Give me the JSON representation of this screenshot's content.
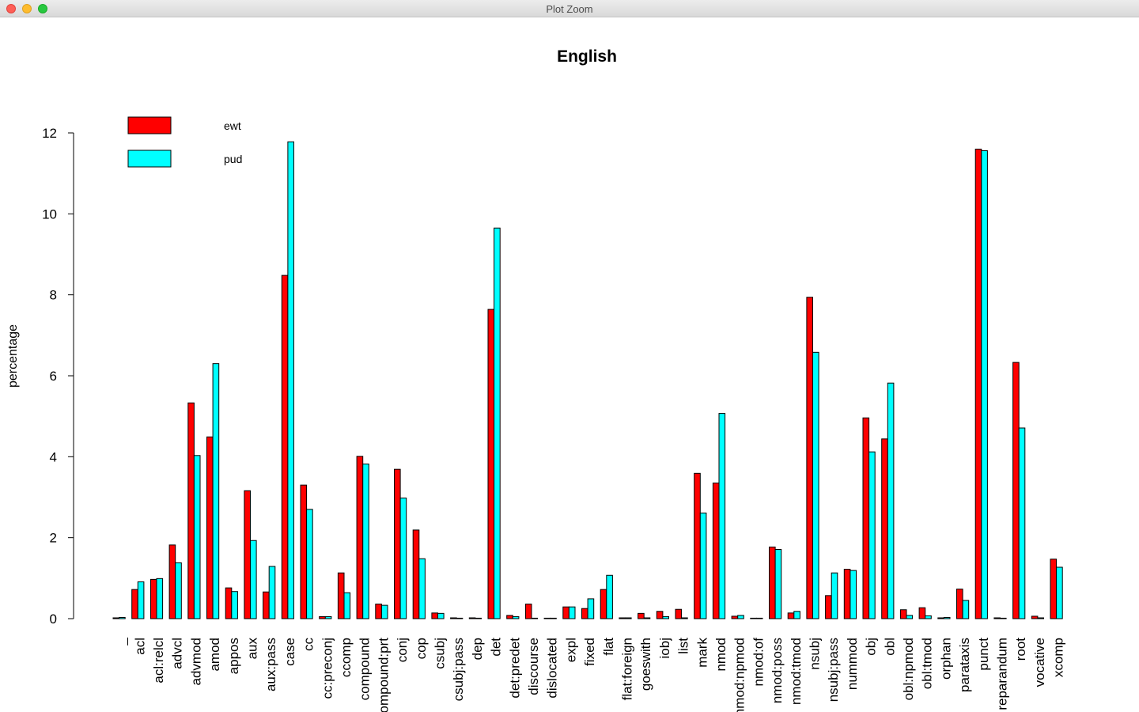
{
  "window": {
    "title": "Plot Zoom"
  },
  "chart_data": {
    "type": "bar",
    "title": "English",
    "xlabel": "",
    "ylabel": "percentage",
    "ylim": [
      0,
      12
    ],
    "yticks": [
      0,
      2,
      4,
      6,
      8,
      10,
      12
    ],
    "legend_position": "top-left",
    "categories": [
      "_",
      "acl",
      "acl:relcl",
      "advcl",
      "advmod",
      "amod",
      "appos",
      "aux",
      "aux:pass",
      "case",
      "cc",
      "cc:preconj",
      "ccomp",
      "compound",
      "compound:prt",
      "conj",
      "cop",
      "csubj",
      "csubj:pass",
      "dep",
      "det",
      "det:predet",
      "discourse",
      "dislocated",
      "expl",
      "fixed",
      "flat",
      "flat:foreign",
      "goeswith",
      "iobj",
      "list",
      "mark",
      "nmod",
      "nmod:npmod",
      "nmod:of",
      "nmod:poss",
      "nmod:tmod",
      "nsubj",
      "nsubj:pass",
      "nummod",
      "obj",
      "obl",
      "obl:npmod",
      "obl:tmod",
      "orphan",
      "parataxis",
      "punct",
      "reparandum",
      "root",
      "vocative",
      "xcomp"
    ],
    "series": [
      {
        "name": "ewt",
        "color": "#ff0000",
        "values": [
          0.02,
          0.72,
          0.97,
          1.82,
          5.33,
          4.49,
          0.76,
          3.16,
          0.66,
          8.48,
          3.3,
          0.05,
          1.13,
          4.01,
          0.36,
          3.69,
          2.19,
          0.14,
          0.02,
          0.02,
          7.64,
          0.08,
          0.36,
          0.01,
          0.29,
          0.25,
          0.72,
          0.02,
          0.13,
          0.18,
          0.23,
          3.59,
          3.35,
          0.06,
          0.01,
          1.77,
          0.14,
          7.94,
          0.57,
          1.22,
          4.96,
          4.44,
          0.22,
          0.27,
          0.02,
          0.73,
          11.6,
          0.02,
          6.33,
          0.06,
          1.47
        ]
      },
      {
        "name": "pud",
        "color": "#00ffff",
        "values": [
          0.03,
          0.91,
          0.99,
          1.38,
          4.03,
          6.3,
          0.67,
          1.93,
          1.29,
          11.78,
          2.7,
          0.05,
          0.64,
          3.82,
          0.33,
          2.98,
          1.48,
          0.13,
          0.01,
          0.01,
          9.65,
          0.05,
          0.01,
          0.01,
          0.29,
          0.49,
          1.07,
          0.02,
          0.02,
          0.05,
          0.02,
          2.61,
          5.07,
          0.08,
          0.01,
          1.71,
          0.18,
          6.58,
          1.13,
          1.19,
          4.12,
          5.82,
          0.08,
          0.07,
          0.03,
          0.45,
          11.56,
          0.01,
          4.71,
          0.02,
          1.27
        ]
      }
    ]
  }
}
